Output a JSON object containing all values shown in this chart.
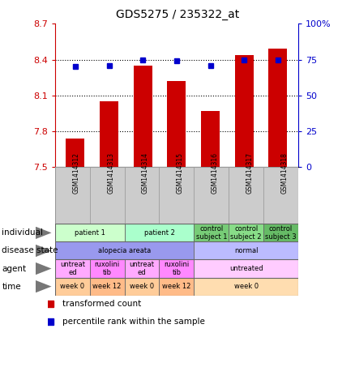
{
  "title": "GDS5275 / 235322_at",
  "samples": [
    "GSM1414312",
    "GSM1414313",
    "GSM1414314",
    "GSM1414315",
    "GSM1414316",
    "GSM1414317",
    "GSM1414318"
  ],
  "bar_values": [
    7.74,
    8.05,
    8.35,
    8.22,
    7.97,
    8.44,
    8.49
  ],
  "dot_values": [
    70,
    71,
    75,
    74,
    71,
    75,
    75
  ],
  "ylim_left": [
    7.5,
    8.7
  ],
  "ylim_right": [
    0,
    100
  ],
  "yticks_left": [
    7.5,
    7.8,
    8.1,
    8.4,
    8.7
  ],
  "yticks_right": [
    0,
    25,
    50,
    75,
    100
  ],
  "ytick_labels_left": [
    "7.5",
    "7.8",
    "8.1",
    "8.4",
    "8.7"
  ],
  "ytick_labels_right": [
    "0",
    "25",
    "50",
    "75",
    "100%"
  ],
  "bar_color": "#cc0000",
  "dot_color": "#0000cc",
  "bar_bottom": 7.5,
  "hgrid_values": [
    7.8,
    8.1,
    8.4
  ],
  "rows": [
    {
      "key": "individual",
      "label": "individual",
      "groups": [
        {
          "text": "patient 1",
          "cols": [
            0,
            1
          ],
          "color": "#ccffcc"
        },
        {
          "text": "patient 2",
          "cols": [
            2,
            3
          ],
          "color": "#aaffcc"
        },
        {
          "text": "control\nsubject 1",
          "cols": [
            4
          ],
          "color": "#77cc77"
        },
        {
          "text": "control\nsubject 2",
          "cols": [
            5
          ],
          "color": "#88dd88"
        },
        {
          "text": "control\nsubject 3",
          "cols": [
            6
          ],
          "color": "#66bb66"
        }
      ]
    },
    {
      "key": "disease_state",
      "label": "disease state",
      "groups": [
        {
          "text": "alopecia areata",
          "cols": [
            0,
            1,
            2,
            3
          ],
          "color": "#9999ee"
        },
        {
          "text": "normal",
          "cols": [
            4,
            5,
            6
          ],
          "color": "#bbbbff"
        }
      ]
    },
    {
      "key": "agent",
      "label": "agent",
      "groups": [
        {
          "text": "untreat\ned",
          "cols": [
            0
          ],
          "color": "#ffaaff"
        },
        {
          "text": "ruxolini\ntib",
          "cols": [
            1
          ],
          "color": "#ff88ff"
        },
        {
          "text": "untreat\ned",
          "cols": [
            2
          ],
          "color": "#ffaaff"
        },
        {
          "text": "ruxolini\ntib",
          "cols": [
            3
          ],
          "color": "#ff88ff"
        },
        {
          "text": "untreated",
          "cols": [
            4,
            5,
            6
          ],
          "color": "#ffccff"
        }
      ]
    },
    {
      "key": "time",
      "label": "time",
      "groups": [
        {
          "text": "week 0",
          "cols": [
            0
          ],
          "color": "#ffcc99"
        },
        {
          "text": "week 12",
          "cols": [
            1
          ],
          "color": "#ffbb88"
        },
        {
          "text": "week 0",
          "cols": [
            2
          ],
          "color": "#ffcc99"
        },
        {
          "text": "week 12",
          "cols": [
            3
          ],
          "color": "#ffbb88"
        },
        {
          "text": "week 0",
          "cols": [
            4,
            5,
            6
          ],
          "color": "#ffddb0"
        }
      ]
    }
  ],
  "sample_box_color": "#cccccc",
  "left_axis_color": "#cc0000",
  "right_axis_color": "#0000cc",
  "legend": [
    {
      "color": "#cc0000",
      "label": "transformed count"
    },
    {
      "color": "#0000cc",
      "label": "percentile rank within the sample"
    }
  ]
}
